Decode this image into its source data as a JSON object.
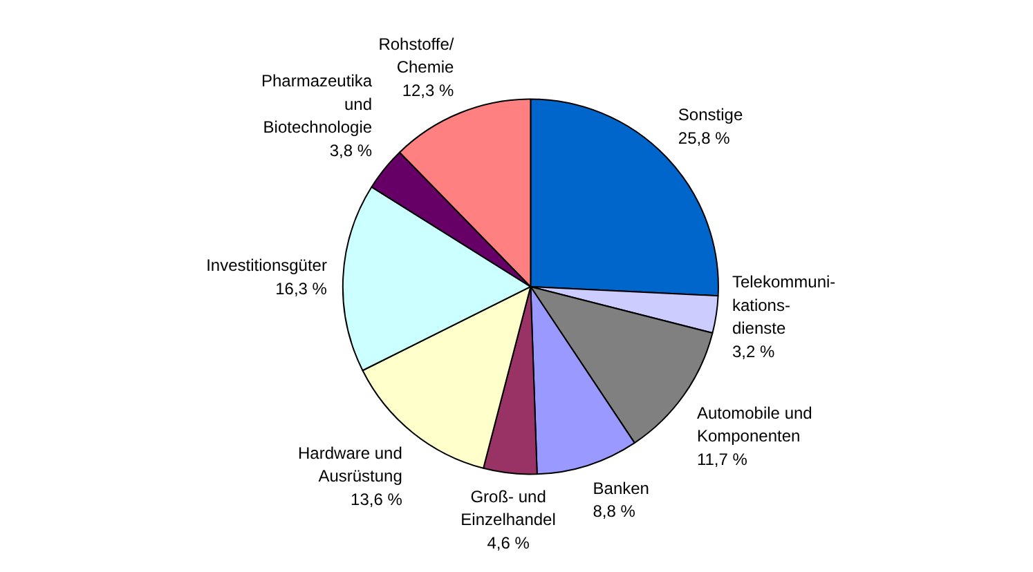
{
  "chart_data": {
    "type": "pie",
    "categories": [
      "Sonstige",
      "Telekommuni-\nkations-\ndienste",
      "Automobile und\nKomponenten",
      "Banken",
      "Groß- und\nEinzelhandel",
      "Hardware und\nAusrüstung",
      "Investitionsgüter",
      "Pharmazeutika\nund\nBiotechnologie",
      "Rohstoffe/\nChemie"
    ],
    "values": [
      25.8,
      3.2,
      11.7,
      8.8,
      4.6,
      13.6,
      16.3,
      3.8,
      12.3
    ],
    "colors": [
      "#0066cc",
      "#ccccff",
      "#808080",
      "#9999ff",
      "#993366",
      "#ffffcc",
      "#ccffff",
      "#660066",
      "#ff8080"
    ],
    "value_labels": [
      "25,8 %",
      "3,2 %",
      "11,7 %",
      "8,8 %",
      "4,6 %",
      "13,6 %",
      "16,3 %",
      "3,8 %",
      "12,3 %"
    ],
    "legend": false
  }
}
